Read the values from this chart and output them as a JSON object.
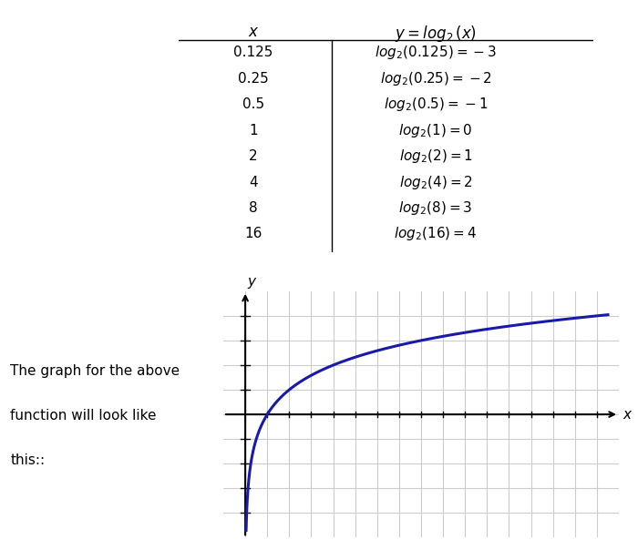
{
  "table_x_values": [
    "0.125",
    "0.25",
    "0.5",
    "1",
    "2",
    "4",
    "8",
    "16"
  ],
  "table_y_labels": [
    "log_2(0.125) = -3",
    "log_2(0.25) = -2",
    "log_2(0.5) = -1",
    "log_2(1) = 0",
    "log_2(2) = 1",
    "log_2(4) = 2",
    "log_2(8) = 3",
    "log_2(16) = 4"
  ],
  "header_x": "x",
  "header_y": "y = log_2(x)",
  "side_text_line1": "The graph for the above",
  "side_text_line2": "function will look like",
  "side_text_line3": "this::",
  "curve_color": "#1a1aaa",
  "background_color": "#ffffff",
  "grid_color": "#cccccc",
  "axis_color": "#000000",
  "table_line_color": "#000000",
  "font_color": "#000000"
}
